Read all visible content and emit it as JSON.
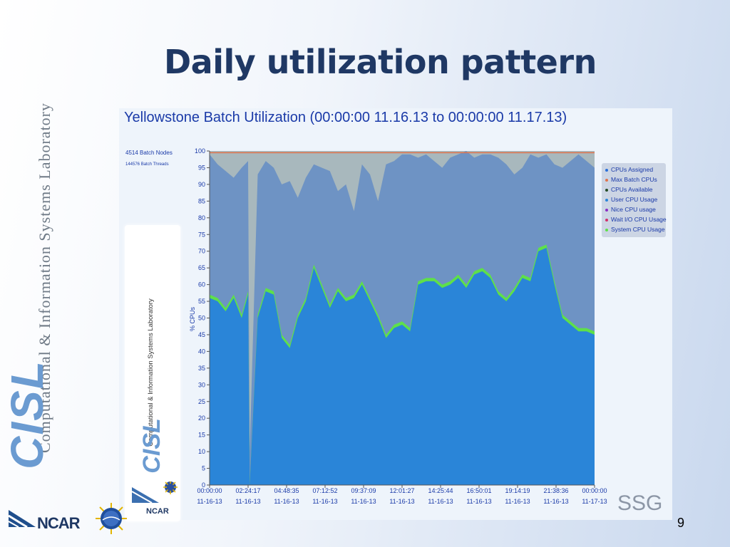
{
  "slide": {
    "title": "Daily utilization pattern",
    "side_text": "Computational & Information Systems Laboratory",
    "side_logo": "CISL",
    "page_number": "9",
    "ncar_label": "NCAR",
    "ssg_label": "SSG",
    "nsf_icon": "nsf-seal-icon"
  },
  "chart_panel": {
    "nodes_label": "4514 Batch Nodes",
    "threads_label": "144576 Batch Threads",
    "inset_text": "Computational & Information Systems Laboratory",
    "inset_logo": "CISL",
    "inset_ncar": "NCAR"
  },
  "chart_data": {
    "type": "area",
    "title": "Yellowstone Batch Utilization (00:00:00 11.16.13 to 00:00:00 11.17.13)",
    "ylabel": "% CPUs",
    "ylim": [
      0,
      100
    ],
    "yticks": [
      0,
      5,
      10,
      15,
      20,
      25,
      30,
      35,
      40,
      45,
      50,
      55,
      60,
      65,
      70,
      75,
      80,
      85,
      90,
      95,
      100
    ],
    "xticks": [
      {
        "time": "00:00:00",
        "date": "11-16-13"
      },
      {
        "time": "02:24:17",
        "date": "11-16-13"
      },
      {
        "time": "04:48:35",
        "date": "11-16-13"
      },
      {
        "time": "07:12:52",
        "date": "11-16-13"
      },
      {
        "time": "09:37:09",
        "date": "11-16-13"
      },
      {
        "time": "12:01:27",
        "date": "11-16-13"
      },
      {
        "time": "14:25:44",
        "date": "11-16-13"
      },
      {
        "time": "16:50:01",
        "date": "11-16-13"
      },
      {
        "time": "19:14:19",
        "date": "11-16-13"
      },
      {
        "time": "21:38:36",
        "date": "11-16-13"
      },
      {
        "time": "00:00:00",
        "date": "11-17-13"
      }
    ],
    "x_hours": [
      0,
      0.5,
      1,
      1.5,
      2,
      2.4,
      2.5,
      3,
      3.5,
      4,
      4.5,
      5,
      5.5,
      6,
      6.5,
      7,
      7.5,
      8,
      8.5,
      9,
      9.5,
      10,
      10.5,
      11,
      11.5,
      12,
      12.5,
      13,
      13.5,
      14,
      14.5,
      15,
      15.5,
      16,
      16.5,
      17,
      17.5,
      18,
      18.5,
      19,
      19.5,
      20,
      20.5,
      21,
      21.5,
      22,
      22.5,
      23,
      23.5,
      24
    ],
    "series": [
      {
        "name": "CPUs Assigned",
        "color": "#6e93c4",
        "values": [
          99,
          96,
          94,
          92,
          95,
          97,
          10,
          93,
          97,
          95,
          90,
          91,
          86,
          92,
          96,
          95,
          94,
          88,
          90,
          82,
          96,
          93,
          85,
          96,
          97,
          99,
          99,
          98,
          99,
          97,
          95,
          98,
          99,
          100,
          98,
          99,
          99,
          98,
          96,
          93,
          95,
          99,
          98,
          99,
          96,
          95,
          97,
          99,
          97,
          95
        ]
      },
      {
        "name": "Max Batch CPUs",
        "color": "#e0724b",
        "values": [
          99.5,
          99.5,
          99.5,
          99.5,
          99.5,
          99.5,
          99.5,
          99.5,
          99.5,
          99.5,
          99.5,
          99.5,
          99.5,
          99.5,
          99.5,
          99.5,
          99.5,
          99.5,
          99.5,
          99.5,
          99.5,
          99.5,
          99.5,
          99.5,
          99.5,
          99.5,
          99.5,
          99.5,
          99.5,
          99.5,
          99.5,
          99.5,
          99.5,
          99.5,
          99.5,
          99.5,
          99.5,
          99.5,
          99.5,
          99.5,
          99.5,
          99.5,
          99.5,
          99.5,
          99.5,
          99.5,
          99.5,
          99.5,
          99.5,
          99.5
        ]
      },
      {
        "name": "CPUs Available",
        "color": "#264d26",
        "values": []
      },
      {
        "name": "User CPU Usage",
        "color": "#2a85d8",
        "values": [
          56,
          55,
          52,
          56,
          50,
          57,
          0,
          50,
          58,
          57,
          44,
          41,
          50,
          55,
          65,
          59,
          53,
          58,
          55,
          56,
          60,
          55,
          50,
          44,
          47,
          48,
          46,
          60,
          61,
          61,
          59,
          60,
          62,
          59,
          63,
          64,
          62,
          57,
          55,
          58,
          62,
          61,
          70,
          71,
          60,
          50,
          48,
          46,
          46,
          45
        ]
      },
      {
        "name": "Nice CPU usage",
        "color": "#8a2fc4",
        "values": []
      },
      {
        "name": "Wait I/O CPU Usage",
        "color": "#d1306b",
        "values": []
      },
      {
        "name": "System CPU Usage",
        "color": "#5ee04a",
        "values": [
          57,
          56,
          53,
          57,
          51,
          58,
          0,
          51,
          59,
          58,
          45,
          42,
          51,
          56,
          66,
          60,
          54,
          59,
          56,
          57,
          61,
          56,
          51,
          45,
          48,
          49,
          47,
          61,
          62,
          62,
          60,
          61,
          63,
          60,
          64,
          65,
          63,
          58,
          56,
          59,
          63,
          62,
          71,
          72,
          61,
          51,
          49,
          47,
          47,
          46
        ]
      }
    ],
    "grid": false,
    "legend_position": "right"
  }
}
